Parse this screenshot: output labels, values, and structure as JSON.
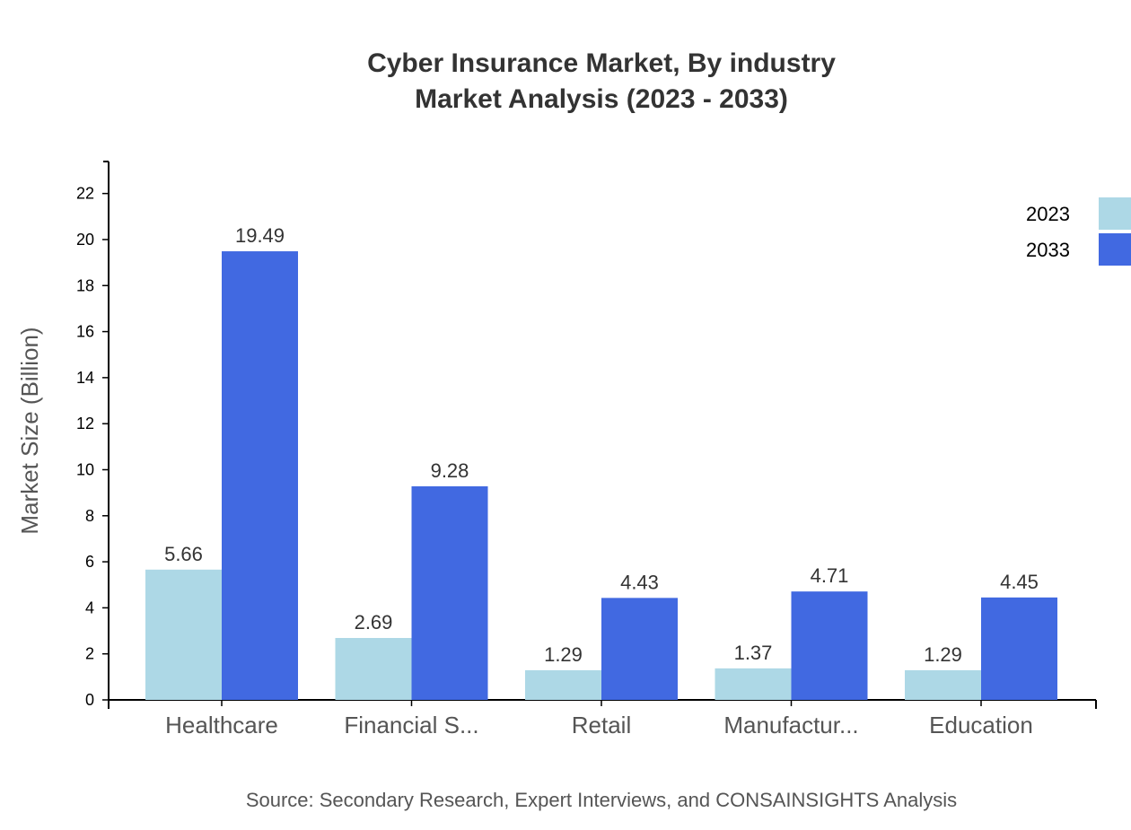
{
  "chart_data": {
    "type": "bar",
    "title": "Cyber Insurance Market, By industry",
    "subtitle": "Market Analysis (2023 - 2033)",
    "xlabel": "",
    "ylabel": "Market Size (Billion)",
    "ylim": [
      0,
      23.39
    ],
    "yticks": [
      "0",
      "2",
      "4",
      "6",
      "8",
      "10",
      "12",
      "14",
      "16",
      "18",
      "20",
      "22"
    ],
    "grid": false,
    "legend_position": "top-right",
    "categories": [
      "Healthcare",
      "Financial S...",
      "Retail",
      "Manufactur...",
      "Education"
    ],
    "series": [
      {
        "name": "2023",
        "color": "#add8e6",
        "values": [
          5.66,
          2.69,
          1.29,
          1.37,
          1.29
        ]
      },
      {
        "name": "2033",
        "color": "#4169e1",
        "values": [
          19.49,
          9.28,
          4.43,
          4.71,
          4.45
        ]
      }
    ],
    "source": "Source: Secondary Research, Expert Interviews, and CONSAINSIGHTS Analysis"
  }
}
